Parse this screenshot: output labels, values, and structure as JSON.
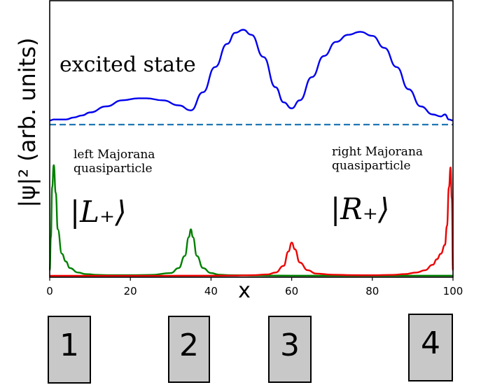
{
  "chart_data": {
    "type": "line",
    "xlabel": "x",
    "ylabel": "|ψ|² (arb. units)",
    "xlim": [
      0,
      100
    ],
    "xticks": [
      "0",
      "20",
      "40",
      "60",
      "80",
      "100"
    ],
    "grid": false,
    "series": [
      {
        "role": "excited",
        "color": "#0000ee",
        "x": [
          0,
          1,
          2,
          4,
          6,
          8,
          10,
          14,
          18,
          22,
          24,
          28,
          32,
          35,
          38,
          41,
          44,
          46,
          48,
          50,
          53,
          56,
          58,
          60,
          62,
          65,
          68,
          71,
          74,
          77,
          80,
          83,
          86,
          89,
          92,
          95,
          97,
          98,
          99,
          100
        ],
        "y": [
          0.02,
          0.03,
          0.03,
          0.03,
          0.05,
          0.07,
          0.1,
          0.16,
          0.22,
          0.24,
          0.24,
          0.22,
          0.17,
          0.12,
          0.3,
          0.55,
          0.78,
          0.89,
          0.92,
          0.87,
          0.65,
          0.35,
          0.2,
          0.14,
          0.22,
          0.45,
          0.66,
          0.8,
          0.87,
          0.9,
          0.86,
          0.74,
          0.55,
          0.33,
          0.16,
          0.08,
          0.06,
          0.08,
          0.03,
          0.02
        ]
      },
      {
        "role": "left Majorana",
        "color": "#008000",
        "x": [
          0,
          0.3,
          0.6,
          1,
          1.5,
          2,
          3,
          4,
          5,
          7,
          9,
          12,
          15,
          20,
          25,
          30,
          32,
          33.5,
          34.5,
          35,
          35.5,
          36.5,
          38,
          40,
          42,
          45,
          50,
          55,
          60,
          70,
          80,
          100
        ],
        "y": [
          0.05,
          0.35,
          0.8,
          1.0,
          0.75,
          0.42,
          0.2,
          0.13,
          0.07,
          0.03,
          0.015,
          0.008,
          0.006,
          0.006,
          0.008,
          0.025,
          0.07,
          0.18,
          0.35,
          0.42,
          0.35,
          0.18,
          0.07,
          0.025,
          0.01,
          0.005,
          0.003,
          0.002,
          0.001,
          0.001,
          0.001,
          0.001
        ]
      },
      {
        "role": "right Majorana",
        "color": "#ee0000",
        "x": [
          0,
          20,
          40,
          45,
          50,
          54,
          56,
          58,
          59.2,
          60,
          60.8,
          62,
          64,
          66,
          70,
          75,
          80,
          85,
          88,
          91,
          93,
          95,
          96,
          97,
          98,
          98.5,
          99,
          99.4,
          99.7,
          100
        ],
        "y": [
          0.0,
          0.0,
          0.001,
          0.002,
          0.005,
          0.012,
          0.03,
          0.09,
          0.22,
          0.3,
          0.24,
          0.12,
          0.05,
          0.02,
          0.01,
          0.006,
          0.005,
          0.008,
          0.015,
          0.03,
          0.05,
          0.1,
          0.15,
          0.2,
          0.28,
          0.45,
          0.8,
          0.98,
          0.7,
          0.05
        ]
      }
    ],
    "reference_line": {
      "style": "dashed",
      "color": "#1f77b4"
    },
    "annotations": {
      "excited": "excited state",
      "left_line1": "left Majorana",
      "left_line2": "quasiparticle",
      "left_ket": "|L₊⟩",
      "right_line1": "right Majorana",
      "right_line2": "quasiparticle",
      "right_ket": "|R₊⟩"
    },
    "chips": [
      "1",
      "2",
      "3",
      "4"
    ]
  }
}
